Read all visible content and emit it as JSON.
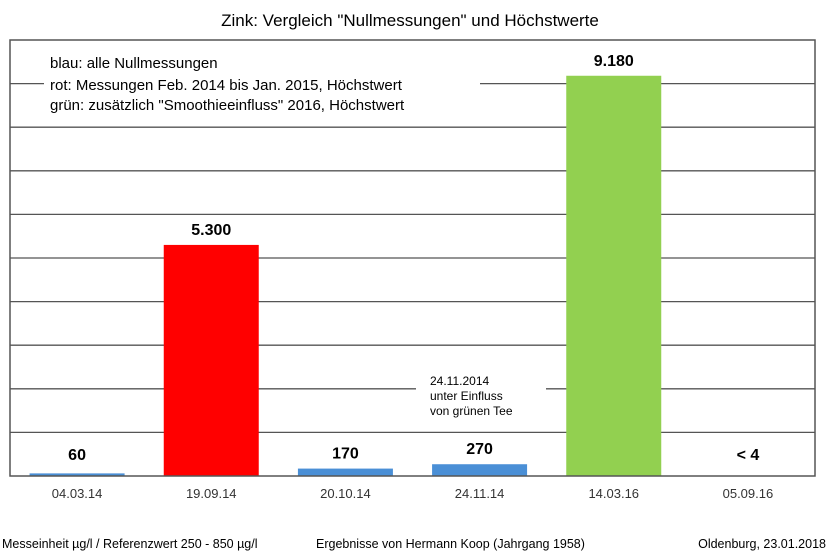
{
  "chart_data": {
    "type": "bar",
    "title": "Zink: Vergleich \"Nullmessungen\" und Höchstwerte",
    "categories": [
      "04.03.14",
      "19.09.14",
      "20.10.14",
      "24.11.14",
      "14.03.16",
      "05.09.16"
    ],
    "values": [
      60,
      5300,
      170,
      270,
      9180,
      4
    ],
    "data_labels": [
      "60",
      "5.300",
      "170",
      "270",
      "9.180",
      "< 4"
    ],
    "bar_colors": [
      "#4a8fd6",
      "#ff0000",
      "#4a8fd6",
      "#4a8fd6",
      "#92d050",
      "#4a8fd6"
    ],
    "ylim": [
      0,
      10000
    ],
    "ytick_step": 1000,
    "grid": true,
    "xlabel": "",
    "ylabel": "",
    "legend_lines": [
      "blau: alle Nullmessungen",
      "rot: Messungen Feb. 2014 bis Jan. 2015, Höchstwert",
      "grün: zusätzlich \"Smoothieeinfluss\" 2016, Höchstwert"
    ],
    "annotation_lines": [
      "24.11.2014",
      "unter Einfluss",
      "von grünen Tee"
    ]
  },
  "footer": {
    "left": "Messeinheit µg/l / Referenzwert 250 - 850 µg/l",
    "center": "Ergebnisse von Hermann Koop (Jahrgang 1958)",
    "right": "Oldenburg, 23.01.2018"
  }
}
